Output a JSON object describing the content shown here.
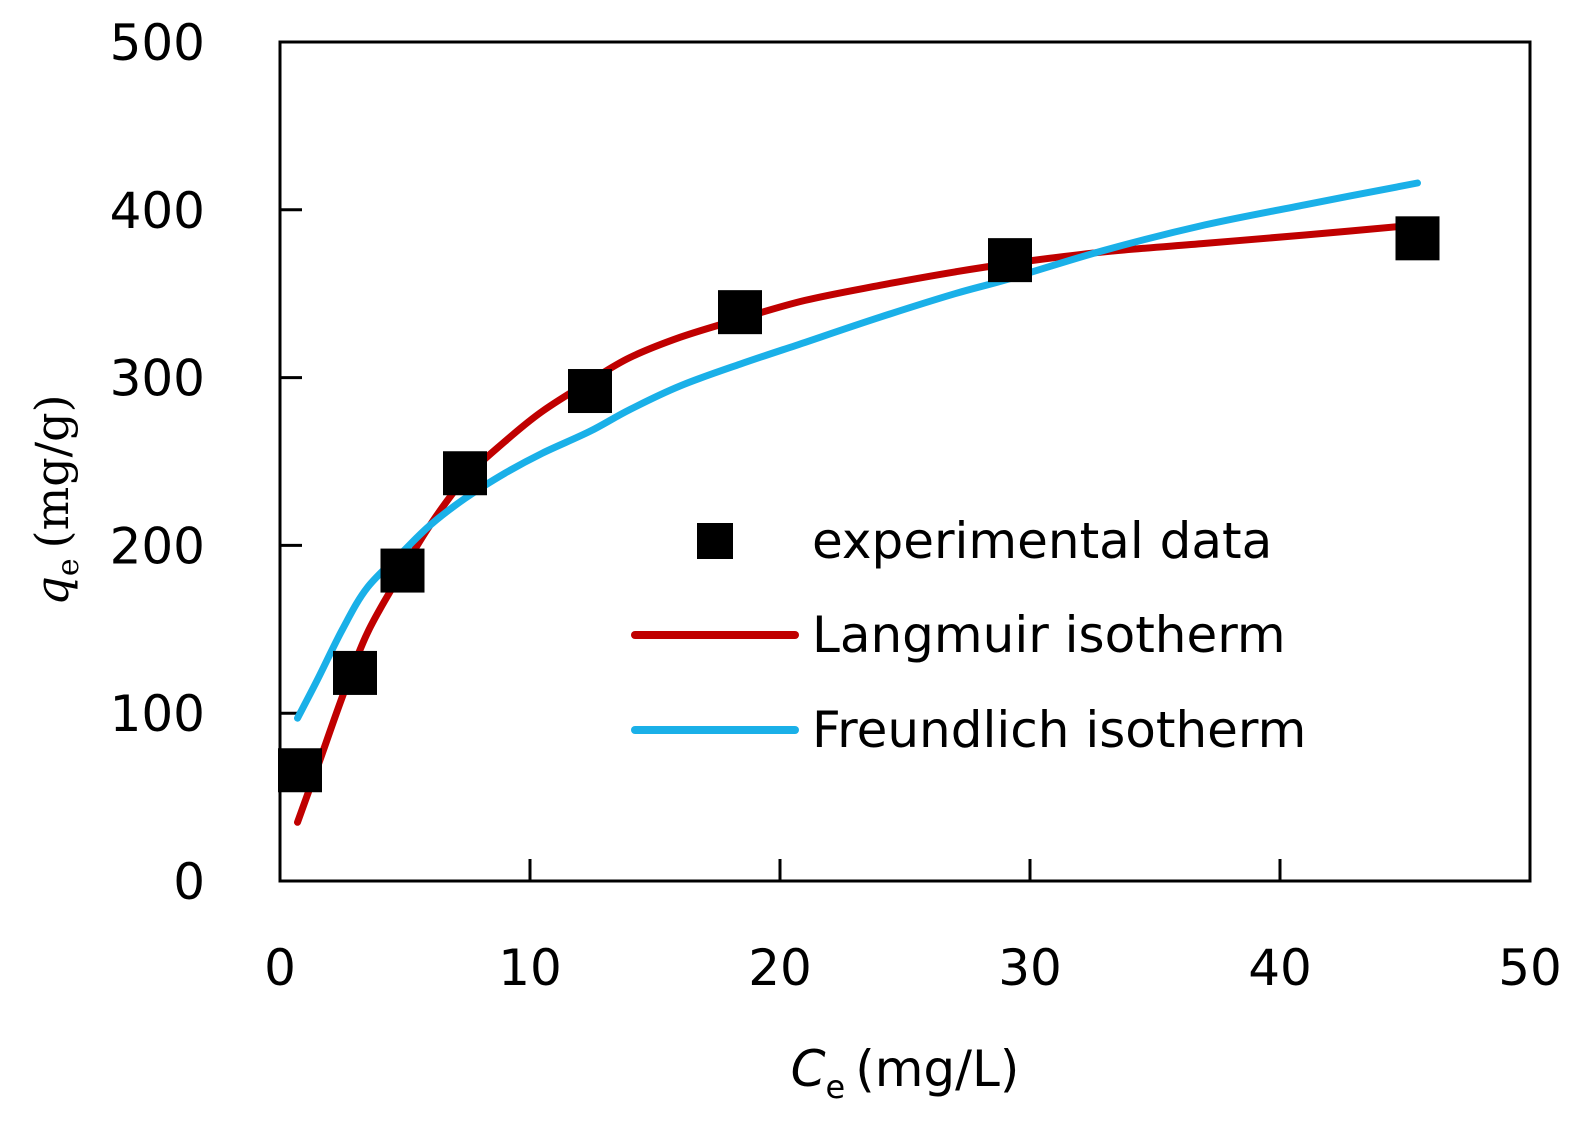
{
  "chart_data": {
    "type": "scatter",
    "title": "",
    "xlabel": {
      "symbol": "C",
      "subscript": "e",
      "unit": "(mg/L)"
    },
    "ylabel": {
      "symbol": "q",
      "subscript": "e",
      "unit": "(mg/g)"
    },
    "xlim": [
      0,
      50
    ],
    "ylim": [
      0,
      500
    ],
    "xticks": [
      0,
      10,
      20,
      30,
      40,
      50
    ],
    "yticks": [
      0,
      100,
      200,
      300,
      400,
      500
    ],
    "grid": false,
    "legend_position": "center-right",
    "series": [
      {
        "name": "experimental data",
        "kind": "markers",
        "marker": "square",
        "color": "#000000",
        "x": [
          0.8,
          3.0,
          4.9,
          7.4,
          12.4,
          18.4,
          29.2,
          45.5
        ],
        "y": [
          66,
          124,
          185,
          243,
          292,
          339,
          370,
          383
        ]
      },
      {
        "name": "Langmuir isotherm",
        "kind": "line",
        "color": "#c00000",
        "x": [
          0.7,
          1.5,
          2.5,
          3.5,
          4.9,
          6.0,
          7.4,
          9.0,
          10.5,
          12.4,
          14.0,
          16.0,
          18.4,
          21.0,
          24.0,
          27.0,
          29.2,
          33.0,
          37.0,
          41.0,
          45.5
        ],
        "y": [
          35,
          68,
          110,
          148,
          185,
          212,
          240,
          262,
          280,
          298,
          312,
          324,
          335,
          346,
          355,
          363,
          368,
          375,
          380,
          385,
          391
        ]
      },
      {
        "name": "Freundlich isotherm",
        "kind": "line",
        "color": "#1ab0e8",
        "x": [
          0.7,
          1.5,
          2.5,
          3.5,
          4.9,
          6.0,
          7.4,
          9.0,
          10.5,
          12.4,
          14.0,
          16.0,
          18.4,
          21.0,
          24.0,
          27.0,
          29.2,
          33.0,
          37.0,
          41.0,
          45.5
        ],
        "y": [
          97,
          120,
          150,
          175,
          196,
          212,
          228,
          243,
          255,
          268,
          281,
          295,
          308,
          321,
          336,
          350,
          359,
          376,
          391,
          403,
          416
        ]
      }
    ]
  }
}
